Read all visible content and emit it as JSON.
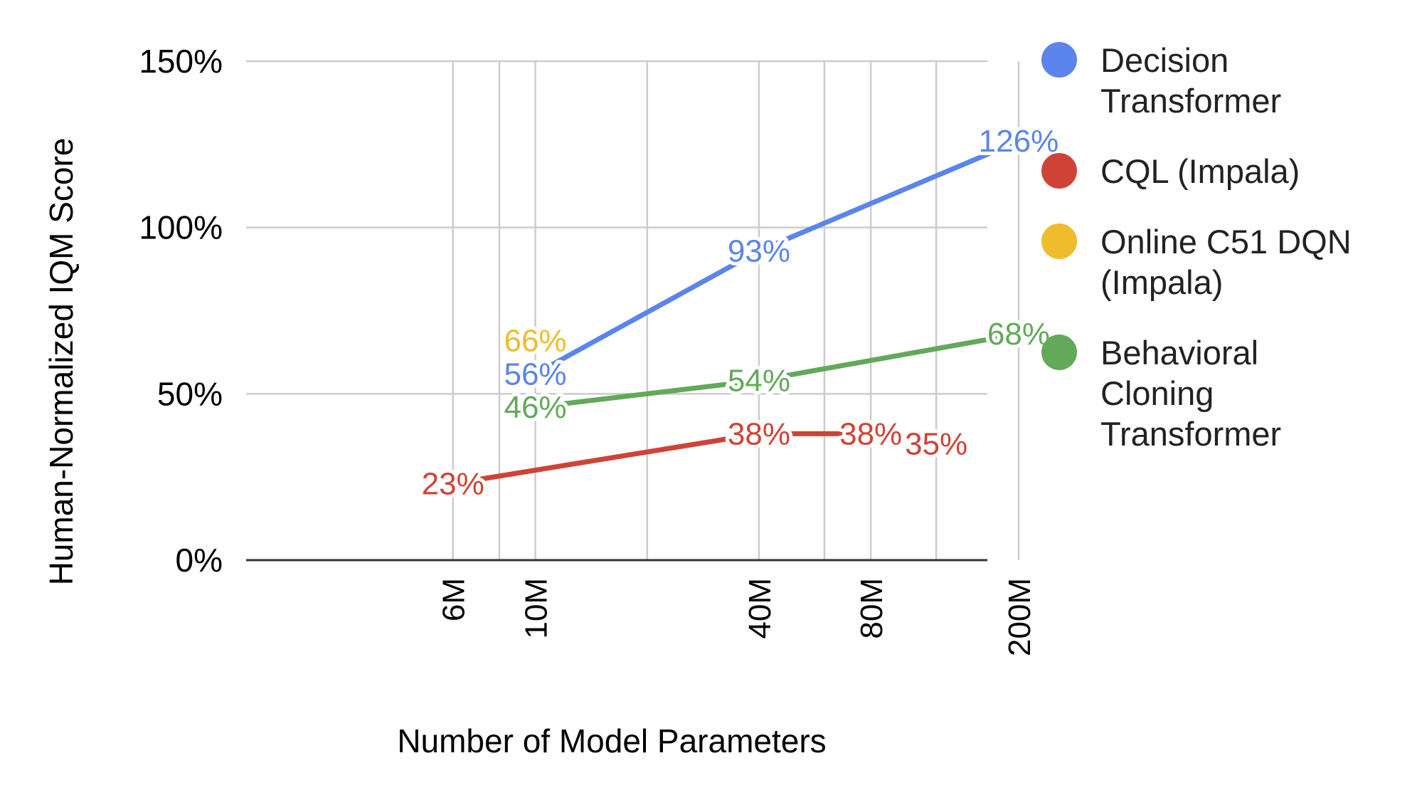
{
  "chart_data": {
    "type": "line",
    "title": "",
    "xlabel": "Number of Model Parameters",
    "ylabel": "Human-Normalized IQM Score",
    "x_scale": "log",
    "x_ticks": [
      {
        "value": 6,
        "label": "6M"
      },
      {
        "value": 10,
        "label": "10M"
      },
      {
        "value": 40,
        "label": "40M"
      },
      {
        "value": 80,
        "label": "80M"
      },
      {
        "value": 200,
        "label": "200M"
      }
    ],
    "x_minor_gridlines": [
      8,
      20,
      60,
      120
    ],
    "y_ticks": [
      {
        "value": 0,
        "label": "0%"
      },
      {
        "value": 50,
        "label": "50%"
      },
      {
        "value": 100,
        "label": "100%"
      },
      {
        "value": 150,
        "label": "150%"
      }
    ],
    "ylim": [
      0,
      150
    ],
    "grid": true,
    "legend_position": "right",
    "series": [
      {
        "name": "Decision Transformer",
        "color": "#5B85EC",
        "points": [
          {
            "x": 10,
            "y": 56,
            "label": "56%"
          },
          {
            "x": 40,
            "y": 93,
            "label": "93%"
          },
          {
            "x": 200,
            "y": 126,
            "label": "126%"
          }
        ]
      },
      {
        "name": "CQL (Impala)",
        "color": "#CF4337",
        "points": [
          {
            "x": 6,
            "y": 23,
            "label": "23%"
          },
          {
            "x": 40,
            "y": 38,
            "label": "38%"
          },
          {
            "x": 80,
            "y": 38,
            "label": "38%"
          },
          {
            "x": 120,
            "y": 35,
            "label": "35%"
          }
        ]
      },
      {
        "name": "Online C51 DQN (Impala)",
        "color": "#EFBC2E",
        "points": [
          {
            "x": 10,
            "y": 66,
            "label": "66%"
          }
        ]
      },
      {
        "name": "Behavioral Cloning Transformer",
        "color": "#62A95A",
        "points": [
          {
            "x": 10,
            "y": 46,
            "label": "46%"
          },
          {
            "x": 40,
            "y": 54,
            "label": "54%"
          },
          {
            "x": 200,
            "y": 68,
            "label": "68%"
          }
        ]
      }
    ]
  }
}
